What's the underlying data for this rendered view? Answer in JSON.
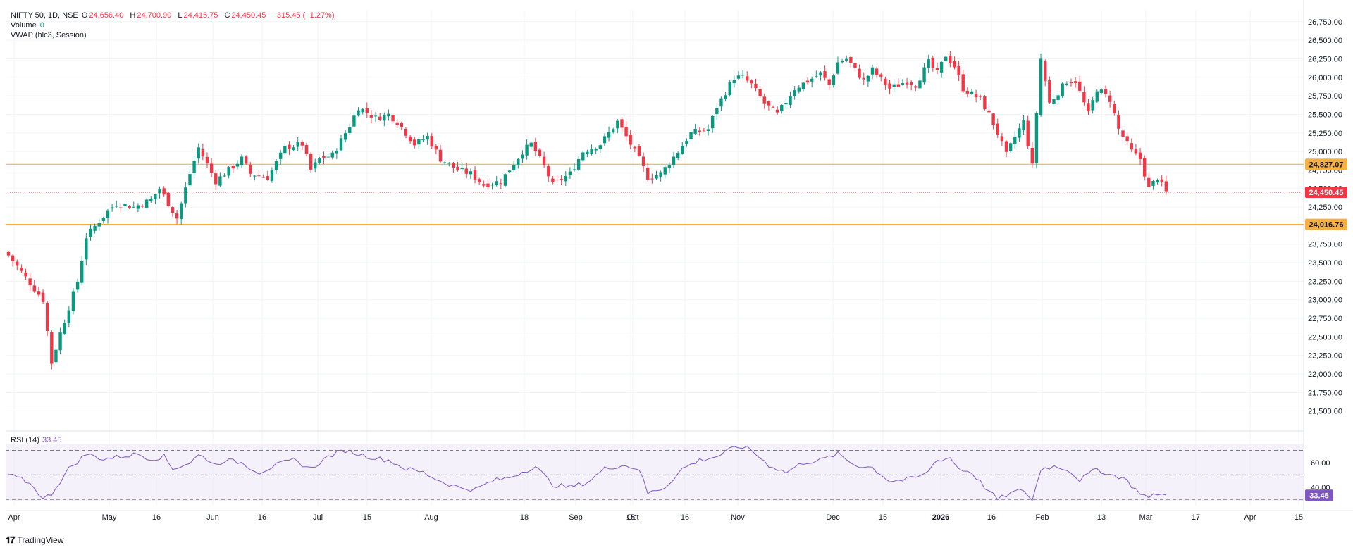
{
  "legend": {
    "symbol": "NIFTY 50, 1D, NSE",
    "o_key": "O",
    "o_val": "24,656.40",
    "h_key": "H",
    "h_val": "24,700.90",
    "l_key": "L",
    "l_val": "24,415.75",
    "c_key": "C",
    "c_val": "24,450.45",
    "chg": "−315.45 (−1.27%)",
    "volume_key": "Volume",
    "volume_val": "0",
    "vwap": "VWAP (hlc3, Session)"
  },
  "rsi": {
    "label": "RSI (14)",
    "value": "33.45"
  },
  "brand": {
    "name": "TradingView"
  },
  "colors": {
    "up": "#089981",
    "down": "#f23645",
    "hline": "#f5b041",
    "rsi": "#7e57c2",
    "rsi_band": "#ede7f6",
    "grid": "#f2f3f5",
    "text": "#131722"
  },
  "chart_data": [
    {
      "type": "candlestick",
      "title": "NIFTY 50, 1D, NSE",
      "ylim": [
        21250,
        26900
      ],
      "yticks": [
        "26,750.00",
        "26,500.00",
        "26,250.00",
        "26,000.00",
        "25,750.00",
        "25,500.00",
        "25,250.00",
        "25,000.00",
        "24,750.00",
        "24,500.00",
        "24,250.00",
        "24,000.00",
        "23,750.00",
        "23,500.00",
        "23,250.00",
        "23,000.00",
        "22,750.00",
        "22,500.00",
        "22,250.00",
        "22,000.00",
        "21,750.00",
        "21,500.00"
      ],
      "xticks": [
        "Apr",
        "May",
        "16",
        "Jun",
        "16",
        "Jul",
        "15",
        "Aug",
        "18",
        "Sep",
        "15",
        "Oct",
        "16",
        "Nov",
        "Dec",
        "15",
        "2026",
        "16",
        "Feb",
        "13",
        "Mar",
        "17",
        "Apr",
        "15"
      ],
      "horizontal_lines": [
        {
          "label": "24,827.07",
          "value": 24827.07
        },
        {
          "label": "24,016.76",
          "value": 24016.76
        }
      ],
      "last_price": {
        "label": "24,450.45",
        "value": 24450.45
      },
      "waypoints": [
        [
          0,
          23600
        ],
        [
          6,
          23150
        ],
        [
          8,
          23000
        ],
        [
          10,
          22150
        ],
        [
          12,
          22550
        ],
        [
          16,
          23250
        ],
        [
          18,
          23850
        ],
        [
          23,
          24200
        ],
        [
          25,
          24300
        ],
        [
          29,
          24250
        ],
        [
          33,
          24350
        ],
        [
          35,
          24500
        ],
        [
          39,
          24100
        ],
        [
          42,
          24700
        ],
        [
          44,
          25050
        ],
        [
          48,
          24600
        ],
        [
          52,
          24800
        ],
        [
          54,
          24900
        ],
        [
          56,
          24700
        ],
        [
          60,
          24650
        ],
        [
          64,
          25050
        ],
        [
          68,
          25100
        ],
        [
          70,
          24750
        ],
        [
          72,
          24900
        ],
        [
          75,
          24950
        ],
        [
          79,
          25350
        ],
        [
          81,
          25600
        ],
        [
          85,
          25450
        ],
        [
          88,
          25500
        ],
        [
          90,
          25400
        ],
        [
          94,
          25100
        ],
        [
          97,
          25200
        ],
        [
          100,
          24900
        ],
        [
          104,
          24750
        ],
        [
          107,
          24700
        ],
        [
          110,
          24550
        ],
        [
          114,
          24600
        ],
        [
          119,
          25000
        ],
        [
          121,
          25100
        ],
        [
          124,
          24800
        ],
        [
          126,
          24550
        ],
        [
          130,
          24700
        ],
        [
          133,
          25000
        ],
        [
          137,
          25100
        ],
        [
          141,
          25400
        ],
        [
          144,
          25100
        ],
        [
          146,
          24900
        ],
        [
          148,
          24650
        ],
        [
          151,
          24700
        ],
        [
          155,
          25000
        ],
        [
          158,
          25250
        ],
        [
          162,
          25300
        ],
        [
          164,
          25600
        ],
        [
          168,
          26000
        ],
        [
          170,
          26000
        ],
        [
          172,
          25900
        ],
        [
          175,
          25650
        ],
        [
          178,
          25500
        ],
        [
          182,
          25850
        ],
        [
          185,
          25950
        ],
        [
          188,
          26050
        ],
        [
          190,
          25900
        ],
        [
          192,
          26200
        ],
        [
          194,
          26250
        ],
        [
          198,
          25950
        ],
        [
          200,
          26100
        ],
        [
          204,
          25850
        ],
        [
          208,
          25950
        ],
        [
          210,
          25900
        ],
        [
          213,
          26200
        ],
        [
          215,
          26050
        ],
        [
          217,
          26300
        ],
        [
          219,
          26150
        ],
        [
          221,
          25850
        ],
        [
          225,
          25700
        ],
        [
          227,
          25500
        ],
        [
          229,
          25250
        ],
        [
          231,
          24950
        ],
        [
          233,
          25200
        ],
        [
          235,
          25400
        ],
        [
          237,
          24800
        ],
        [
          239,
          26250
        ],
        [
          241,
          25650
        ],
        [
          245,
          25950
        ],
        [
          247,
          25950
        ],
        [
          250,
          25500
        ],
        [
          252,
          25850
        ],
        [
          255,
          25700
        ],
        [
          257,
          25300
        ],
        [
          260,
          25000
        ],
        [
          262,
          24900
        ],
        [
          264,
          24500
        ],
        [
          266,
          24650
        ],
        [
          268,
          24450
        ]
      ],
      "rsi": {
        "ylim": [
          25,
          80
        ],
        "levels": [
          70,
          50,
          30
        ],
        "ticks": [
          "60.00",
          "40.00"
        ],
        "waypoints": [
          [
            0,
            50
          ],
          [
            4,
            45
          ],
          [
            6,
            40
          ],
          [
            8,
            30
          ],
          [
            10,
            35
          ],
          [
            14,
            55
          ],
          [
            18,
            67
          ],
          [
            22,
            63
          ],
          [
            26,
            65
          ],
          [
            30,
            67
          ],
          [
            33,
            63
          ],
          [
            36,
            65
          ],
          [
            38,
            55
          ],
          [
            42,
            60
          ],
          [
            44,
            66
          ],
          [
            46,
            63
          ],
          [
            48,
            58
          ],
          [
            50,
            62
          ],
          [
            54,
            60
          ],
          [
            58,
            52
          ],
          [
            62,
            58
          ],
          [
            66,
            62
          ],
          [
            70,
            55
          ],
          [
            74,
            65
          ],
          [
            78,
            70
          ],
          [
            82,
            66
          ],
          [
            86,
            63
          ],
          [
            88,
            62
          ],
          [
            92,
            55
          ],
          [
            96,
            52
          ],
          [
            100,
            45
          ],
          [
            104,
            40
          ],
          [
            108,
            38
          ],
          [
            112,
            45
          ],
          [
            116,
            48
          ],
          [
            120,
            54
          ],
          [
            122,
            57
          ],
          [
            126,
            42
          ],
          [
            130,
            40
          ],
          [
            134,
            44
          ],
          [
            138,
            55
          ],
          [
            142,
            58
          ],
          [
            146,
            55
          ],
          [
            148,
            35
          ],
          [
            152,
            40
          ],
          [
            156,
            55
          ],
          [
            160,
            62
          ],
          [
            164,
            65
          ],
          [
            168,
            72
          ],
          [
            170,
            73
          ],
          [
            172,
            70
          ],
          [
            176,
            58
          ],
          [
            180,
            52
          ],
          [
            184,
            60
          ],
          [
            188,
            62
          ],
          [
            192,
            67
          ],
          [
            196,
            58
          ],
          [
            200,
            56
          ],
          [
            204,
            45
          ],
          [
            208,
            46
          ],
          [
            212,
            50
          ],
          [
            215,
            62
          ],
          [
            218,
            64
          ],
          [
            220,
            55
          ],
          [
            223,
            52
          ],
          [
            226,
            40
          ],
          [
            229,
            30
          ],
          [
            232,
            35
          ],
          [
            235,
            38
          ],
          [
            237,
            29
          ],
          [
            239,
            55
          ],
          [
            242,
            57
          ],
          [
            245,
            55
          ],
          [
            248,
            46
          ],
          [
            252,
            55
          ],
          [
            255,
            50
          ],
          [
            258,
            48
          ],
          [
            261,
            38
          ],
          [
            264,
            31
          ],
          [
            266,
            35
          ],
          [
            268,
            33
          ]
        ]
      }
    }
  ]
}
